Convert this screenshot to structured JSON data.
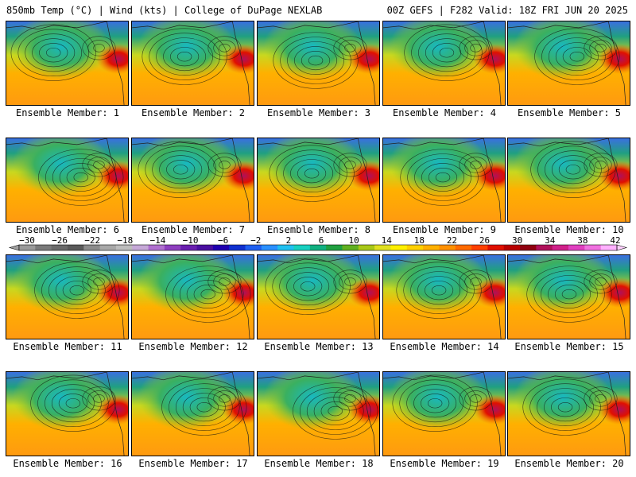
{
  "header": {
    "left": "850mb Temp (°C) | Wind (kts) | College of DuPage NEXLAB",
    "right": "00Z GEFS | F282 Valid: 18Z FRI JUN 20 2025"
  },
  "colorbar": {
    "labels": [
      "-30",
      "-26",
      "-22",
      "-18",
      "-14",
      "-10",
      "-6",
      "-2",
      "2",
      "6",
      "10",
      "14",
      "18",
      "22",
      "26",
      "30",
      "34",
      "38",
      "42"
    ],
    "colors": [
      "#9a9a9a",
      "#7a7a7a",
      "#6a6a6a",
      "#5a5a5a",
      "#8c8c8c",
      "#a8a8a8",
      "#bdbdbd",
      "#c6a8d8",
      "#b070d0",
      "#8e3fbf",
      "#6a1fb0",
      "#4a0fa0",
      "#2000b0",
      "#1030d0",
      "#1f5ff0",
      "#2a90ff",
      "#20c0f0",
      "#18d0c0",
      "#10b080",
      "#20a040",
      "#60b020",
      "#a8c818",
      "#e0e020",
      "#fff000",
      "#ffd000",
      "#ffb000",
      "#ff9000",
      "#ff6a00",
      "#ff4000",
      "#e01000",
      "#b80000",
      "#900010",
      "#b0105a",
      "#d0208a",
      "#e040c0",
      "#f070e0",
      "#ffb0ff"
    ]
  },
  "members": [
    {
      "caption": "Ensemble Member: 1"
    },
    {
      "caption": "Ensemble Member: 2"
    },
    {
      "caption": "Ensemble Member: 3"
    },
    {
      "caption": "Ensemble Member: 4"
    },
    {
      "caption": "Ensemble Member: 5"
    },
    {
      "caption": "Ensemble Member: 6"
    },
    {
      "caption": "Ensemble Member: 7"
    },
    {
      "caption": "Ensemble Member: 8"
    },
    {
      "caption": "Ensemble Member: 9"
    },
    {
      "caption": "Ensemble Member: 10"
    },
    {
      "caption": "Ensemble Member: 11"
    },
    {
      "caption": "Ensemble Member: 12"
    },
    {
      "caption": "Ensemble Member: 13"
    },
    {
      "caption": "Ensemble Member: 14"
    },
    {
      "caption": "Ensemble Member: 15"
    },
    {
      "caption": "Ensemble Member: 16"
    },
    {
      "caption": "Ensemble Member: 17"
    },
    {
      "caption": "Ensemble Member: 18"
    },
    {
      "caption": "Ensemble Member: 19"
    },
    {
      "caption": "Ensemble Member: 20"
    }
  ]
}
